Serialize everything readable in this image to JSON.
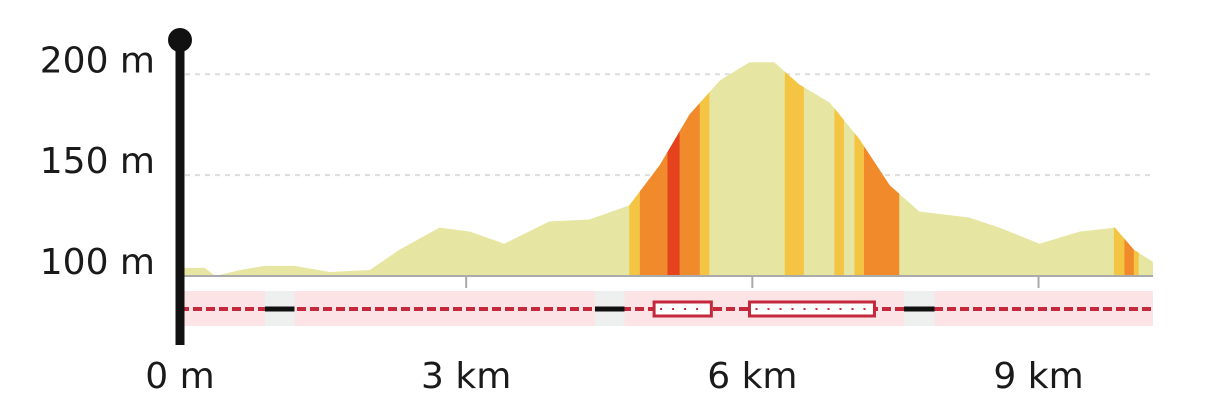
{
  "chart_data": {
    "type": "area",
    "x": [
      0,
      0.26,
      0.37,
      0.63,
      0.89,
      1.2,
      1.57,
      1.99,
      2.3,
      2.72,
      3.04,
      3.4,
      3.87,
      4.29,
      4.71,
      5.03,
      5.34,
      5.66,
      5.97,
      6.23,
      6.49,
      6.81,
      7.12,
      7.44,
      7.75,
      8.27,
      8.59,
      9.01,
      9.43,
      9.8,
      10.0,
      10.2
    ],
    "values": [
      104,
      104,
      100,
      103,
      105,
      105,
      102,
      103,
      113,
      124,
      122,
      116,
      127,
      128,
      135,
      155,
      180,
      197,
      206,
      206,
      195,
      186,
      168,
      145,
      132,
      129,
      124,
      116,
      122,
      124,
      113,
      107
    ],
    "color": "#e6e6a2",
    "slope_bands": [
      {
        "from": 4.71,
        "to": 4.82,
        "color": "#f4c542"
      },
      {
        "from": 4.82,
        "to": 5.11,
        "color": "#f08a2a"
      },
      {
        "from": 5.11,
        "to": 5.24,
        "color": "#e5431e"
      },
      {
        "from": 5.24,
        "to": 5.45,
        "color": "#f08a2a"
      },
      {
        "from": 5.45,
        "to": 5.55,
        "color": "#f4c542"
      },
      {
        "from": 6.34,
        "to": 6.54,
        "color": "#f4c542"
      },
      {
        "from": 6.86,
        "to": 6.96,
        "color": "#f4c542"
      },
      {
        "from": 7.07,
        "to": 7.17,
        "color": "#f4c542"
      },
      {
        "from": 7.17,
        "to": 7.54,
        "color": "#f08a2a"
      },
      {
        "from": 9.79,
        "to": 9.9,
        "color": "#f4c542"
      },
      {
        "from": 9.9,
        "to": 10.0,
        "color": "#f08a2a"
      },
      {
        "from": 10.0,
        "to": 10.05,
        "color": "#f4c542"
      }
    ],
    "surface": [
      {
        "from": 0.89,
        "to": 1.2,
        "style": "black"
      },
      {
        "from": 4.35,
        "to": 4.66,
        "style": "black"
      },
      {
        "from": 4.97,
        "to": 5.57,
        "style": "box"
      },
      {
        "from": 5.97,
        "to": 7.28,
        "style": "box"
      },
      {
        "from": 7.59,
        "to": 7.91,
        "style": "black"
      }
    ],
    "xlim": [
      0,
      10.2
    ],
    "ylim": [
      100,
      217
    ],
    "xticks": [
      {
        "value": 0,
        "label": "0 m"
      },
      {
        "value": 3,
        "label": "3 km"
      },
      {
        "value": 6,
        "label": "6 km"
      },
      {
        "value": 9,
        "label": "9 km"
      }
    ],
    "yticks": [
      {
        "value": 100,
        "label": "100 m"
      },
      {
        "value": 150,
        "label": "150 m"
      },
      {
        "value": 200,
        "label": "200 m"
      }
    ],
    "grid": true
  }
}
